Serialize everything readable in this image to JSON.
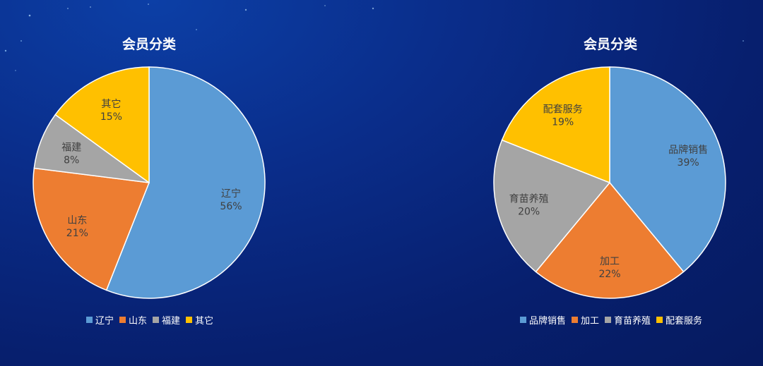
{
  "chart_data": [
    {
      "type": "pie",
      "title": "会员分类",
      "categories": [
        "辽宁",
        "山东",
        "福建",
        "其它"
      ],
      "values": [
        56,
        21,
        8,
        15
      ],
      "labels": [
        "56%",
        "21%",
        "8%",
        "15%"
      ],
      "colors": [
        "#5b9bd5",
        "#ed7d31",
        "#a5a5a5",
        "#ffc000"
      ],
      "legend_position": "bottom"
    },
    {
      "type": "pie",
      "title": "会员分类",
      "categories": [
        "品牌销售",
        "加工",
        "育苗养殖",
        "配套服务"
      ],
      "values": [
        39,
        22,
        20,
        19
      ],
      "labels": [
        "39%",
        "22%",
        "20%",
        "19%"
      ],
      "colors": [
        "#5b9bd5",
        "#ed7d31",
        "#a5a5a5",
        "#ffc000"
      ],
      "legend_position": "bottom"
    }
  ]
}
